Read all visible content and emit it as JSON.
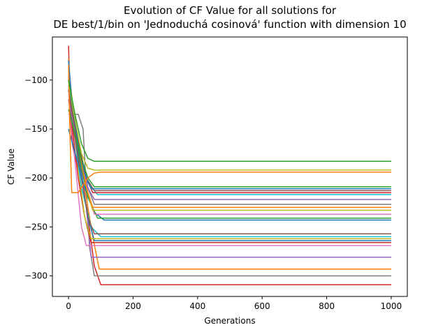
{
  "chart_data": {
    "type": "line",
    "title": "Evolution of CF Value for all solutions for",
    "subtitle": "DE best/1/bin on 'Jednoduchá cosinová' function with dimension 10",
    "xlabel": "Generations",
    "ylabel": "CF Value",
    "xlim": [
      -50,
      1050
    ],
    "ylim": [
      -321,
      -56
    ],
    "xticks": [
      0,
      200,
      400,
      600,
      800,
      1000
    ],
    "yticks": [
      -300,
      -250,
      -200,
      -150,
      -100
    ],
    "grid": false,
    "legend": false,
    "series": [
      {
        "color": "#d62728",
        "points": [
          [
            0,
            -65
          ],
          [
            3,
            -100
          ],
          [
            6,
            -140
          ],
          [
            12,
            -165
          ],
          [
            20,
            -180
          ],
          [
            40,
            -200
          ],
          [
            60,
            -240
          ],
          [
            80,
            -290
          ],
          [
            100,
            -309
          ],
          [
            1000,
            -309
          ]
        ]
      },
      {
        "color": "#7f7f7f",
        "points": [
          [
            0,
            -135
          ],
          [
            10,
            -135
          ],
          [
            30,
            -135
          ],
          [
            45,
            -150
          ],
          [
            55,
            -210
          ],
          [
            65,
            -270
          ],
          [
            80,
            -300
          ],
          [
            1000,
            -300
          ]
        ]
      },
      {
        "color": "#ff7f0e",
        "points": [
          [
            0,
            -78
          ],
          [
            8,
            -120
          ],
          [
            20,
            -160
          ],
          [
            35,
            -190
          ],
          [
            55,
            -220
          ],
          [
            75,
            -260
          ],
          [
            95,
            -293
          ],
          [
            1000,
            -293
          ]
        ]
      },
      {
        "color": "#9467bd",
        "points": [
          [
            0,
            -110
          ],
          [
            15,
            -140
          ],
          [
            35,
            -180
          ],
          [
            55,
            -230
          ],
          [
            70,
            -281
          ],
          [
            1000,
            -281
          ]
        ]
      },
      {
        "color": "#e377c2",
        "points": [
          [
            0,
            -110
          ],
          [
            10,
            -150
          ],
          [
            25,
            -200
          ],
          [
            40,
            -250
          ],
          [
            55,
            -269
          ],
          [
            1000,
            -269
          ]
        ]
      },
      {
        "color": "#d62728",
        "points": [
          [
            0,
            -95
          ],
          [
            12,
            -150
          ],
          [
            30,
            -200
          ],
          [
            50,
            -240
          ],
          [
            70,
            -266
          ],
          [
            1000,
            -266
          ]
        ]
      },
      {
        "color": "#1f77b4",
        "points": [
          [
            0,
            -100
          ],
          [
            20,
            -150
          ],
          [
            40,
            -200
          ],
          [
            60,
            -240
          ],
          [
            80,
            -264
          ],
          [
            1000,
            -264
          ]
        ]
      },
      {
        "color": "#bcbd22",
        "points": [
          [
            0,
            -90
          ],
          [
            15,
            -140
          ],
          [
            30,
            -190
          ],
          [
            50,
            -240
          ],
          [
            70,
            -262
          ],
          [
            1000,
            -262
          ]
        ]
      },
      {
        "color": "#17becf",
        "points": [
          [
            0,
            -120
          ],
          [
            20,
            -160
          ],
          [
            40,
            -210
          ],
          [
            70,
            -250
          ],
          [
            100,
            -260
          ],
          [
            1000,
            -260
          ]
        ]
      },
      {
        "color": "#8c564b",
        "points": [
          [
            0,
            -120
          ],
          [
            20,
            -160
          ],
          [
            40,
            -200
          ],
          [
            60,
            -240
          ],
          [
            80,
            -257
          ],
          [
            1000,
            -257
          ]
        ]
      },
      {
        "color": "#1f77b4",
        "points": [
          [
            0,
            -150
          ],
          [
            25,
            -180
          ],
          [
            50,
            -210
          ],
          [
            80,
            -235
          ],
          [
            110,
            -243
          ],
          [
            1000,
            -243
          ]
        ]
      },
      {
        "color": "#2ca02c",
        "points": [
          [
            0,
            -110
          ],
          [
            20,
            -150
          ],
          [
            40,
            -190
          ],
          [
            60,
            -220
          ],
          [
            90,
            -241
          ],
          [
            1000,
            -241
          ]
        ]
      },
      {
        "color": "#e377c2",
        "points": [
          [
            0,
            -100
          ],
          [
            20,
            -140
          ],
          [
            40,
            -180
          ],
          [
            60,
            -215
          ],
          [
            80,
            -237
          ],
          [
            1000,
            -237
          ]
        ]
      },
      {
        "color": "#bcbd22",
        "points": [
          [
            0,
            -95
          ],
          [
            15,
            -130
          ],
          [
            35,
            -170
          ],
          [
            55,
            -210
          ],
          [
            75,
            -233
          ],
          [
            1000,
            -233
          ]
        ]
      },
      {
        "color": "#ff7f0e",
        "points": [
          [
            0,
            -90
          ],
          [
            15,
            -130
          ],
          [
            35,
            -175
          ],
          [
            55,
            -210
          ],
          [
            75,
            -230
          ],
          [
            1000,
            -230
          ]
        ]
      },
      {
        "color": "#7f7f7f",
        "points": [
          [
            0,
            -130
          ],
          [
            20,
            -150
          ],
          [
            40,
            -180
          ],
          [
            60,
            -210
          ],
          [
            80,
            -227
          ],
          [
            1000,
            -227
          ]
        ]
      },
      {
        "color": "#9467bd",
        "points": [
          [
            0,
            -120
          ],
          [
            20,
            -150
          ],
          [
            40,
            -180
          ],
          [
            60,
            -210
          ],
          [
            80,
            -222
          ],
          [
            1000,
            -222
          ]
        ]
      },
      {
        "color": "#17becf",
        "points": [
          [
            0,
            -105
          ],
          [
            20,
            -140
          ],
          [
            40,
            -180
          ],
          [
            60,
            -205
          ],
          [
            90,
            -217
          ],
          [
            1000,
            -217
          ]
        ]
      },
      {
        "color": "#d62728",
        "points": [
          [
            0,
            -100
          ],
          [
            15,
            -130
          ],
          [
            35,
            -170
          ],
          [
            55,
            -200
          ],
          [
            75,
            -215
          ],
          [
            1000,
            -215
          ]
        ]
      },
      {
        "color": "#8c564b",
        "points": [
          [
            0,
            -110
          ],
          [
            15,
            -140
          ],
          [
            35,
            -175
          ],
          [
            55,
            -200
          ],
          [
            80,
            -213
          ],
          [
            1000,
            -213
          ]
        ]
      },
      {
        "color": "#1f77b4",
        "points": [
          [
            0,
            -80
          ],
          [
            10,
            -120
          ],
          [
            30,
            -165
          ],
          [
            50,
            -195
          ],
          [
            70,
            -211
          ],
          [
            1000,
            -211
          ]
        ]
      },
      {
        "color": "#2ca02c",
        "points": [
          [
            0,
            -130
          ],
          [
            20,
            -155
          ],
          [
            40,
            -180
          ],
          [
            60,
            -200
          ],
          [
            80,
            -209
          ],
          [
            1000,
            -209
          ]
        ]
      },
      {
        "color": "#ff7f0e",
        "points": [
          [
            0,
            -85
          ],
          [
            4,
            -150
          ],
          [
            10,
            -215
          ],
          [
            30,
            -215
          ],
          [
            40,
            -210
          ],
          [
            60,
            -200
          ],
          [
            80,
            -195
          ],
          [
            100,
            -194
          ],
          [
            1000,
            -194
          ]
        ]
      },
      {
        "color": "#bcbd22",
        "points": [
          [
            0,
            -100
          ],
          [
            20,
            -140
          ],
          [
            40,
            -175
          ],
          [
            60,
            -190
          ],
          [
            80,
            -192
          ],
          [
            1000,
            -192
          ]
        ]
      },
      {
        "color": "#2ca02c",
        "points": [
          [
            0,
            -100
          ],
          [
            20,
            -135
          ],
          [
            40,
            -165
          ],
          [
            60,
            -180
          ],
          [
            80,
            -183
          ],
          [
            1000,
            -183
          ]
        ]
      }
    ]
  }
}
